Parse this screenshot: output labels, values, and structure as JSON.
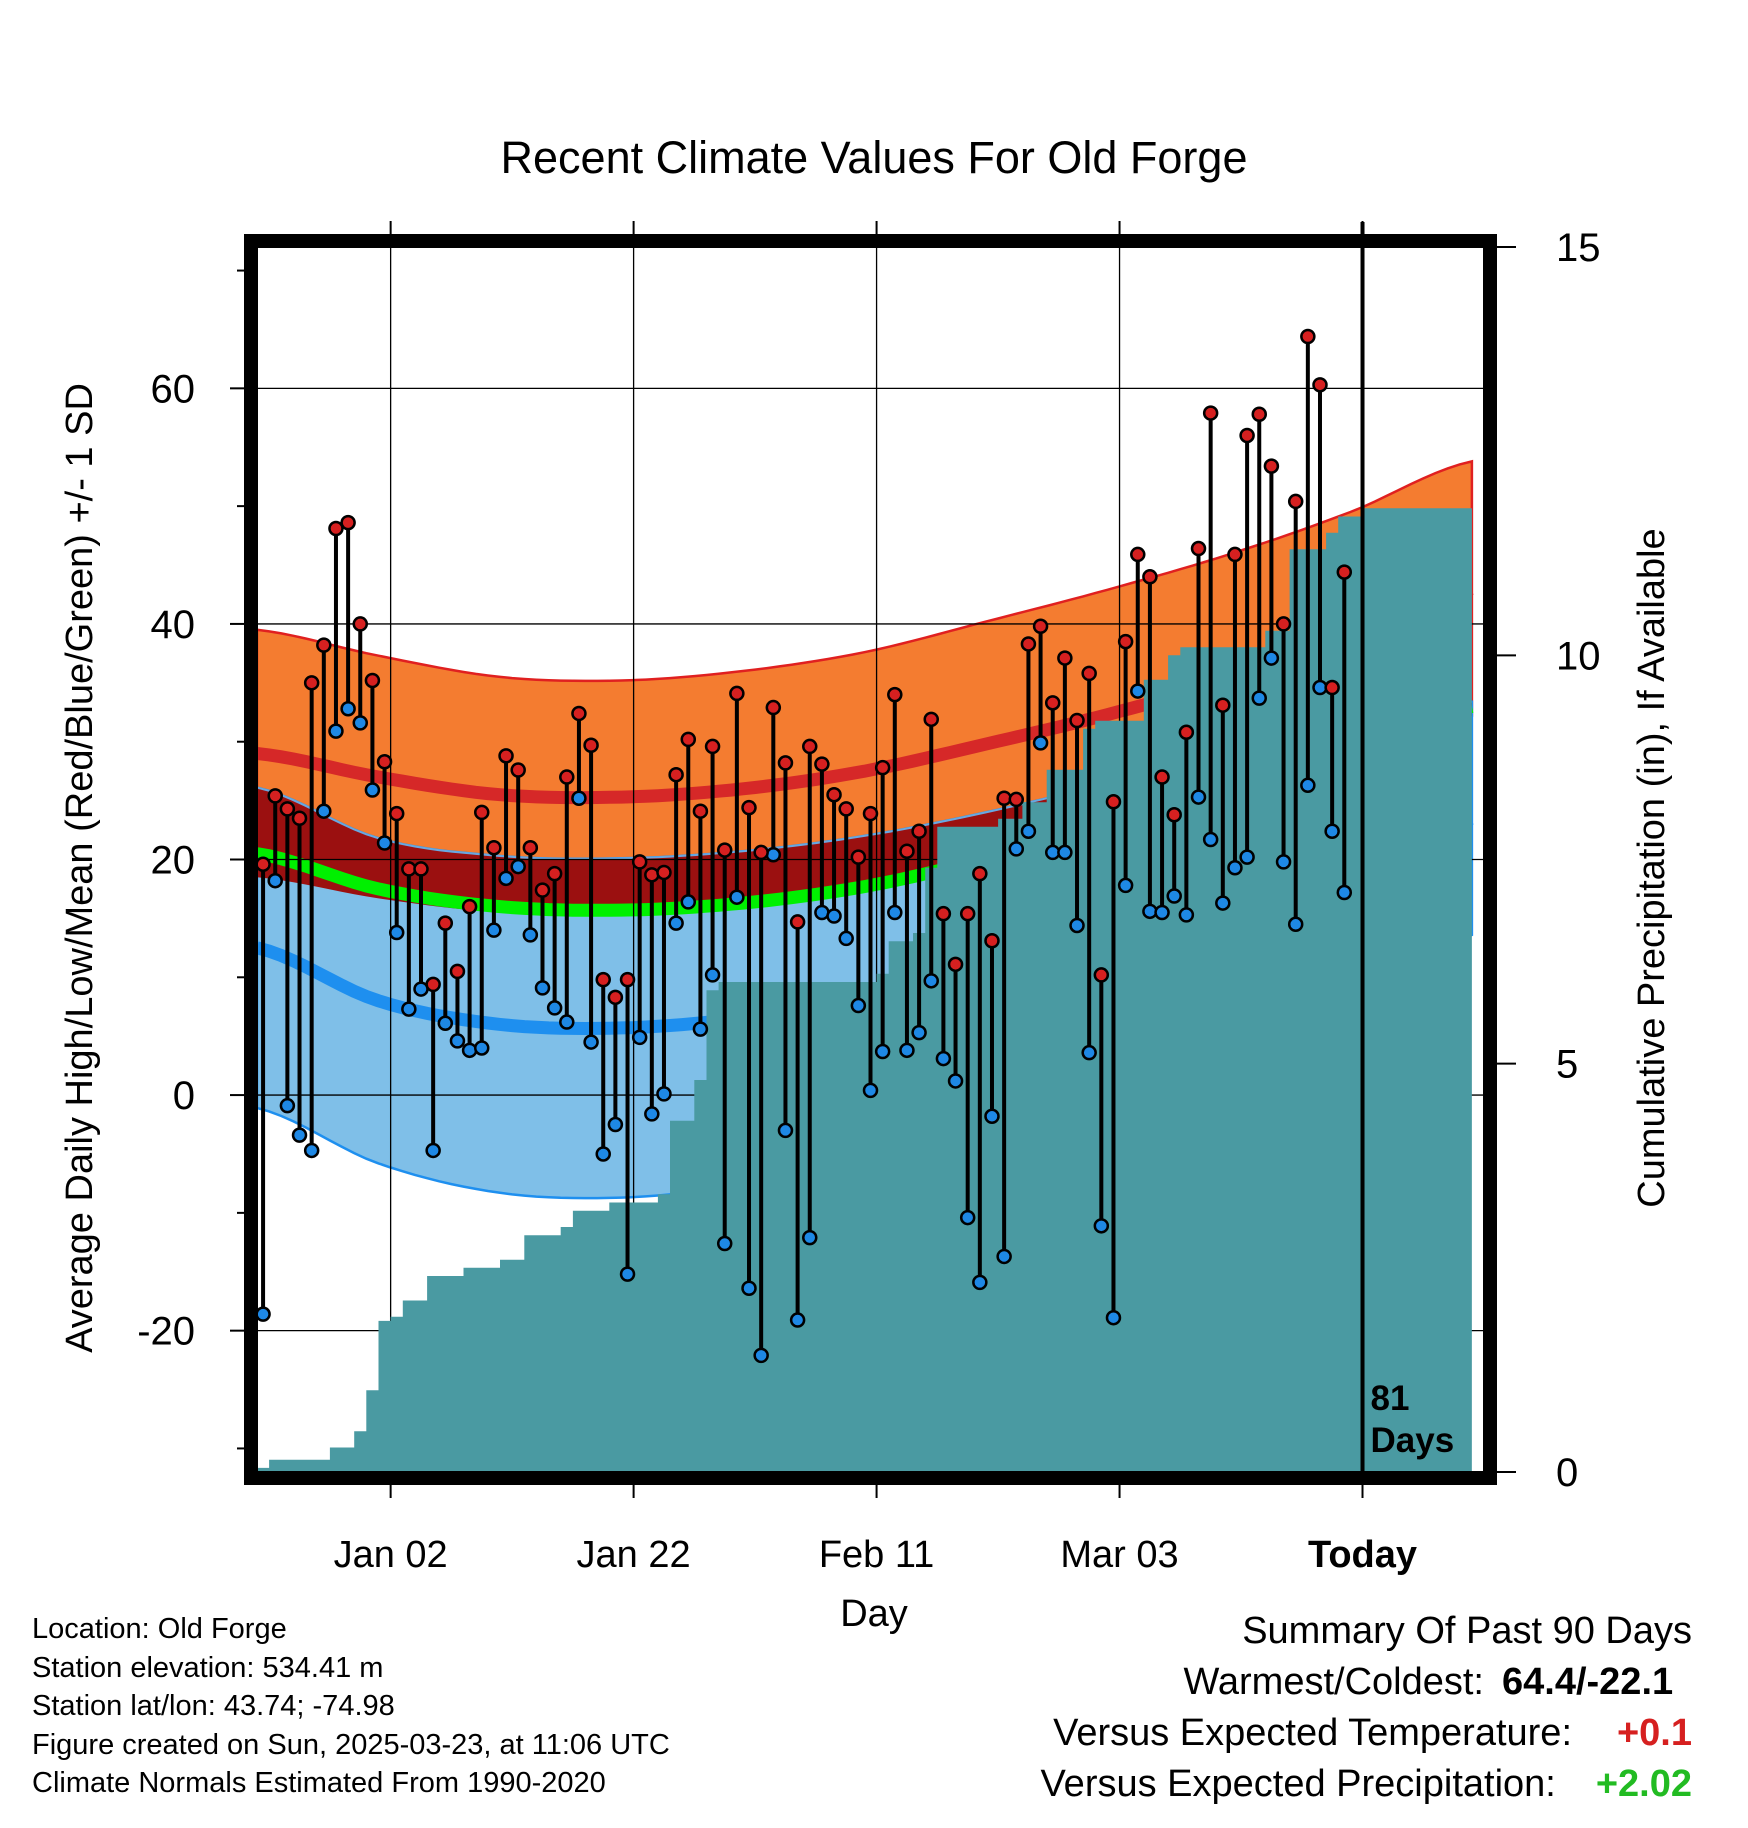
{
  "chart_data": {
    "type": "line",
    "title": "Recent Climate Values For Old Forge",
    "xlabel": "Day",
    "ylabel": "Average Daily High/Low/Mean (Red/Blue/Green) +/- 1 SD",
    "y2label": "Cumulative Precipitation (in), If Available",
    "ylim": [
      -32,
      72
    ],
    "y2lim": [
      0,
      15
    ],
    "xlim": [
      0,
      101
    ],
    "x_axis_note": "x in day index, day 0 = Dec 22; Today = day 91",
    "x_ticks": [
      {
        "label": "Jan 02",
        "day": 11
      },
      {
        "label": "Jan 22",
        "day": 31
      },
      {
        "label": "Feb 11",
        "day": 51
      },
      {
        "label": "Mar 03",
        "day": 71
      },
      {
        "label": "Today",
        "day": 91
      }
    ],
    "y_ticks": [
      -20,
      0,
      20,
      40,
      60
    ],
    "y2_ticks": [
      0,
      5,
      10,
      15
    ],
    "today_label": "81\nDays",
    "normals": {
      "days": [
        0,
        10,
        20,
        30,
        40,
        50,
        60,
        70,
        80,
        90,
        100
      ],
      "high_mean": [
        29,
        27,
        25.5,
        25.3,
        26,
        27.5,
        29.8,
        32.3,
        35.2,
        38.7,
        43
      ],
      "high_sd": [
        10.5,
        10.3,
        10,
        9.9,
        10,
        10.1,
        10.4,
        10.6,
        10.7,
        10.8,
        10.8
      ],
      "low_mean": [
        12.5,
        8,
        6,
        5.7,
        6.5,
        8,
        10,
        12.5,
        15.5,
        19.2,
        23.5
      ],
      "low_sd": [
        13.6,
        13.8,
        14.3,
        14.4,
        14.2,
        14,
        14,
        14,
        13.8,
        12.8,
        9.9
      ],
      "avg_mean": [
        20.5,
        17.5,
        16,
        15.7,
        16.3,
        17.7,
        20,
        22.4,
        25.3,
        29,
        33
      ]
    },
    "series": [
      {
        "name": "High",
        "color": "#d62020",
        "values": [
          19.6,
          25.4,
          24.3,
          23.5,
          35,
          38.2,
          48.1,
          48.6,
          40,
          35.2,
          28.3,
          23.9,
          19.2,
          19.2,
          9.4,
          14.6,
          10.5,
          16,
          24,
          21,
          28.8,
          27.6,
          21,
          17.4,
          18.8,
          27,
          32.4,
          29.7,
          9.8,
          8.3,
          9.8,
          19.8,
          18.7,
          18.9,
          27.2,
          30.2,
          24.1,
          29.6,
          20.8,
          34.1,
          24.4,
          20.6,
          32.9,
          28.2,
          14.7,
          29.6,
          28.1,
          25.5,
          24.3,
          20.2,
          23.9,
          27.8,
          34,
          20.7,
          22.4,
          31.9,
          15.4,
          11.1,
          15.4,
          18.8,
          13.1,
          25.2,
          25.1,
          38.3,
          39.8,
          33.3,
          37.1,
          31.8,
          35.8,
          10.2,
          24.9,
          38.5,
          45.9,
          44,
          27,
          23.8,
          30.8,
          46.4,
          57.9,
          33.1,
          45.9,
          56,
          57.8,
          53.4,
          40,
          50.4,
          64.4,
          60.3,
          34.6,
          44.4
        ]
      },
      {
        "name": "Low",
        "color": "#1e88e5",
        "values": [
          -18.6,
          18.2,
          -0.9,
          -3.4,
          -4.7,
          24.1,
          30.9,
          32.8,
          31.6,
          25.9,
          21.4,
          13.8,
          7.3,
          9,
          -4.7,
          6.1,
          4.6,
          3.8,
          4,
          14,
          18.4,
          19.4,
          13.6,
          9.1,
          7.4,
          6.2,
          25.2,
          4.5,
          -5,
          -2.5,
          -15.2,
          4.9,
          -1.6,
          0.1,
          14.6,
          16.4,
          5.6,
          10.2,
          -12.6,
          16.8,
          -16.4,
          -22.1,
          20.4,
          -3,
          -19.1,
          -12.1,
          15.5,
          15.2,
          13.3,
          7.6,
          0.4,
          3.7,
          15.5,
          3.8,
          5.3,
          9.7,
          3.1,
          1.2,
          -10.4,
          -15.9,
          -1.8,
          -13.7,
          20.9,
          22.4,
          29.9,
          20.6,
          20.6,
          14.4,
          3.6,
          -11.1,
          -18.9,
          17.8,
          34.3,
          15.6,
          15.5,
          16.9,
          15.3,
          25.3,
          21.7,
          16.3,
          19.3,
          20.2,
          33.7,
          37.1,
          19.8,
          14.5,
          26.3,
          34.6,
          22.4,
          17.2
        ]
      }
    ],
    "precip": {
      "days": [
        0,
        1,
        5,
        6,
        8,
        9,
        10,
        11,
        12,
        14,
        17,
        20,
        22,
        25,
        26,
        29,
        32,
        33,
        34,
        36,
        37,
        38,
        41,
        43,
        46,
        50,
        51,
        52,
        54,
        55,
        56,
        58,
        61,
        63,
        65,
        68,
        69,
        71,
        73,
        75,
        76,
        80,
        82,
        83,
        85,
        86,
        88,
        89,
        91,
        100
      ],
      "values": [
        0.05,
        0.15,
        0.15,
        0.3,
        0.5,
        1,
        1.85,
        1.9,
        2.1,
        2.4,
        2.5,
        2.6,
        2.9,
        3,
        3.2,
        3.3,
        3.3,
        3.4,
        4.3,
        4.8,
        5.9,
        6,
        6,
        6,
        6,
        6,
        6.1,
        6.5,
        6.6,
        7.4,
        7.9,
        7.9,
        8,
        8.2,
        8.6,
        9.1,
        9.2,
        9.2,
        9.7,
        10,
        10.1,
        10.1,
        10.1,
        10.3,
        11.3,
        11.3,
        11.5,
        11.7,
        11.8,
        11.8
      ]
    },
    "colors": {
      "high_band": "#f47c30",
      "high_line": "#d62828",
      "low_band": "#7fbfe8",
      "low_line": "#1e8fef",
      "avg_band": "#9b1010",
      "avg_line": "#00f000",
      "precip": "#4a9aa2"
    }
  },
  "info": [
    "Location: Old Forge",
    "Station elevation: 534.41 m",
    "Station lat/lon: 43.74; -74.98",
    "Figure created on Sun, 2025-03-23, at 11:06 UTC",
    "Climate Normals Estimated From 1990-2020"
  ],
  "summary": {
    "title": "Summary Of Past 90 Days",
    "warm_cold_label": "Warmest/Coldest:",
    "warm_cold_value": "64.4/-22.1",
    "temp_label": "Versus Expected Temperature:",
    "temp_value": "+0.1",
    "temp_color": "#d62020",
    "precip_label": "Versus Expected Precipitation:",
    "precip_value": "+2.02",
    "precip_color": "#22bb22"
  }
}
